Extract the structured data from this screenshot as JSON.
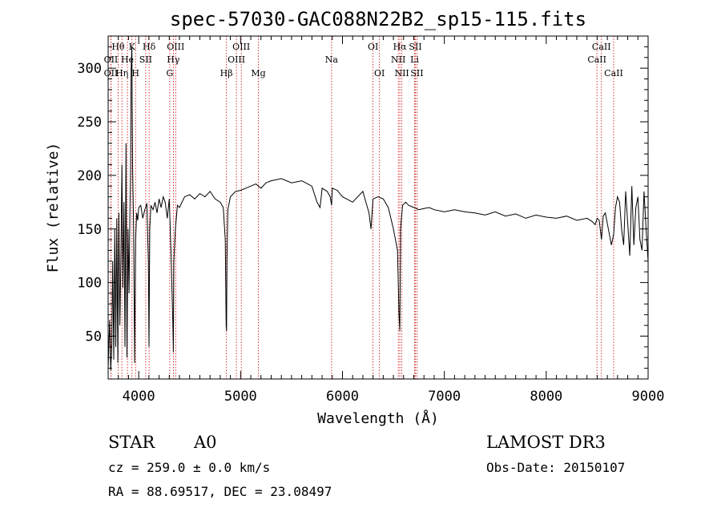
{
  "chart_data": {
    "type": "line",
    "title": "spec-57030-GAC088N22B2_sp15-115.fits",
    "xlabel": "Wavelength (Å)",
    "ylabel": "Flux (relative)",
    "xlim": [
      3700,
      9000
    ],
    "ylim": [
      10,
      330
    ],
    "x_ticks": [
      4000,
      5000,
      6000,
      7000,
      8000,
      9000
    ],
    "y_ticks": [
      50,
      100,
      150,
      200,
      250,
      300
    ],
    "grid": false,
    "series": [
      {
        "x": [
          3700,
          3715,
          3725,
          3735,
          3745,
          3755,
          3765,
          3775,
          3785,
          3795,
          3805,
          3815,
          3825,
          3835,
          3845,
          3855,
          3865,
          3875,
          3885,
          3895,
          3905,
          3912,
          3920,
          3926,
          3933,
          3940,
          3950,
          3960,
          3970,
          3980,
          3990,
          4000,
          4020,
          4040,
          4060,
          4080,
          4095,
          4101,
          4108,
          4120,
          4140,
          4160,
          4180,
          4200,
          4220,
          4240,
          4260,
          4280,
          4300,
          4320,
          4335,
          4340,
          4345,
          4360,
          4380,
          4400,
          4450,
          4500,
          4550,
          4600,
          4650,
          4700,
          4750,
          4800,
          4830,
          4850,
          4858,
          4862,
          4866,
          4875,
          4900,
          4950,
          5000,
          5050,
          5100,
          5150,
          5200,
          5250,
          5300,
          5400,
          5500,
          5600,
          5700,
          5750,
          5780,
          5800,
          5850,
          5880,
          5893,
          5900,
          5950,
          6000,
          6100,
          6200,
          6260,
          6280,
          6300,
          6350,
          6400,
          6450,
          6500,
          6540,
          6555,
          6563,
          6570,
          6590,
          6620,
          6650,
          6700,
          6750,
          6800,
          6850,
          6900,
          7000,
          7100,
          7200,
          7300,
          7400,
          7500,
          7600,
          7700,
          7800,
          7900,
          8000,
          8100,
          8200,
          8300,
          8400,
          8450,
          8480,
          8500,
          8520,
          8542,
          8560,
          8580,
          8610,
          8640,
          8662,
          8680,
          8700,
          8720,
          8740,
          8760,
          8780,
          8800,
          8820,
          8840,
          8860,
          8880,
          8900,
          8920,
          8940,
          8960,
          8980,
          9000
        ],
        "y": [
          20,
          65,
          18,
          40,
          120,
          28,
          150,
          40,
          160,
          25,
          165,
          60,
          120,
          210,
          95,
          175,
          40,
          230,
          30,
          150,
          90,
          155,
          205,
          300,
          320,
          210,
          150,
          25,
          140,
          165,
          158,
          170,
          172,
          160,
          168,
          174,
          120,
          40,
          150,
          172,
          168,
          175,
          165,
          178,
          170,
          180,
          175,
          160,
          178,
          120,
          60,
          35,
          120,
          150,
          172,
          170,
          180,
          182,
          178,
          183,
          180,
          185,
          178,
          175,
          170,
          140,
          60,
          55,
          120,
          168,
          180,
          185,
          186,
          188,
          190,
          192,
          188,
          193,
          195,
          197,
          193,
          195,
          190,
          175,
          170,
          188,
          185,
          180,
          172,
          188,
          186,
          180,
          175,
          185,
          165,
          150,
          178,
          180,
          178,
          170,
          150,
          130,
          70,
          55,
          150,
          172,
          175,
          172,
          170,
          168,
          169,
          170,
          168,
          166,
          168,
          166,
          165,
          163,
          166,
          162,
          164,
          160,
          163,
          161,
          160,
          162,
          158,
          160,
          157,
          154,
          160,
          158,
          140,
          162,
          165,
          150,
          135,
          145,
          170,
          180,
          175,
          150,
          135,
          185,
          155,
          125,
          190,
          135,
          170,
          180,
          140,
          130,
          185,
          150,
          120
        ]
      }
    ],
    "line_markers": [
      {
        "label": "Hθ",
        "x": 3798,
        "row": 1
      },
      {
        "label": "OII",
        "x": 3727,
        "row": 2
      },
      {
        "label": "OII",
        "x": 3727,
        "row": 3
      },
      {
        "label": "K",
        "x": 3934,
        "row": 1
      },
      {
        "label": "He",
        "x": 3889,
        "row": 2
      },
      {
        "label": "Hη",
        "x": 3835,
        "row": 3
      },
      {
        "label": "Hδ",
        "x": 4102,
        "row": 1
      },
      {
        "label": "SII",
        "x": 4069,
        "row": 2
      },
      {
        "label": "H",
        "x": 3969,
        "row": 3
      },
      {
        "label": "OIII",
        "x": 4363,
        "row": 1
      },
      {
        "label": "Hγ",
        "x": 4340,
        "row": 2
      },
      {
        "label": "G",
        "x": 4305,
        "row": 3
      },
      {
        "label": "OIII",
        "x": 5007,
        "row": 1
      },
      {
        "label": "OIII",
        "x": 4959,
        "row": 2
      },
      {
        "label": "Hβ",
        "x": 4861,
        "row": 3
      },
      {
        "label": "Mg",
        "x": 5175,
        "row": 3
      },
      {
        "label": "Na",
        "x": 5893,
        "row": 2
      },
      {
        "label": "OI",
        "x": 6300,
        "row": 1
      },
      {
        "label": "OI",
        "x": 6363,
        "row": 3
      },
      {
        "label": "Hα",
        "x": 6563,
        "row": 1
      },
      {
        "label": "SII",
        "x": 6716,
        "row": 1
      },
      {
        "label": "NII",
        "x": 6548,
        "row": 2
      },
      {
        "label": "Li",
        "x": 6708,
        "row": 2
      },
      {
        "label": "NII",
        "x": 6583,
        "row": 3
      },
      {
        "label": "SII",
        "x": 6731,
        "row": 3
      },
      {
        "label": "CaII",
        "x": 8542,
        "row": 1
      },
      {
        "label": "CaII",
        "x": 8498,
        "row": 2
      },
      {
        "label": "CaII",
        "x": 8662,
        "row": 3
      }
    ]
  },
  "info": {
    "object_class": "STAR",
    "subclass": "A0",
    "survey": "LAMOST DR3",
    "cz": "cz = 259.0 ± 0.0 km/s",
    "obs_date": "Obs-Date: 20150107",
    "coords": "RA =  88.69517, DEC =  23.08497"
  }
}
